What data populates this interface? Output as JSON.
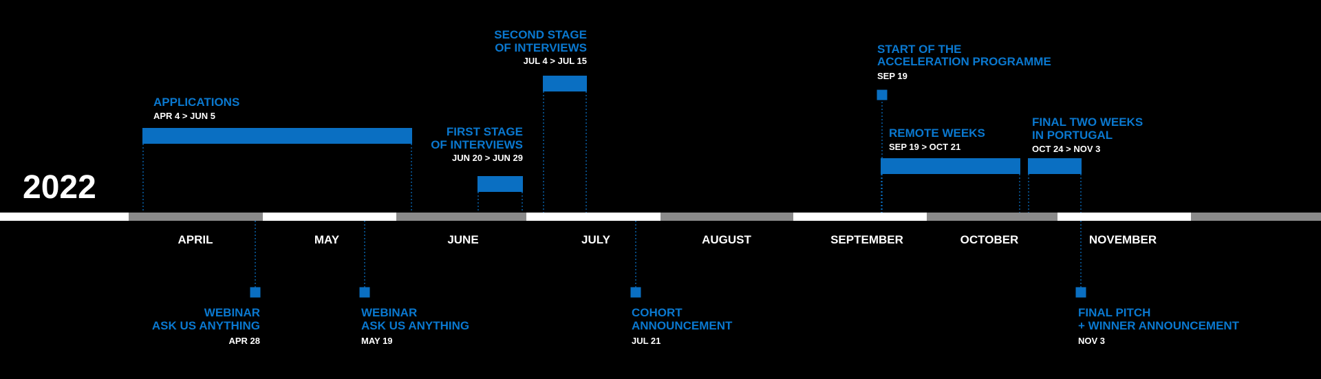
{
  "year": "2022",
  "months": [
    "APRIL",
    "MAY",
    "JUNE",
    "JULY",
    "AUGUST",
    "SEPTEMBER",
    "OCTOBER",
    "NOVEMBER"
  ],
  "events": [
    {
      "title": [
        "APPLICATIONS"
      ],
      "date": "APR 4 > JUN 5"
    },
    {
      "title": [
        "FIRST STAGE",
        "OF INTERVIEWS"
      ],
      "date": "JUN 20 > JUN 29"
    },
    {
      "title": [
        "SECOND STAGE",
        "OF INTERVIEWS"
      ],
      "date": "JUL 4 > JUL 15"
    },
    {
      "title": [
        "START OF THE",
        "ACCELERATION PROGRAMME"
      ],
      "date": "SEP 19"
    },
    {
      "title": [
        "REMOTE WEEKS"
      ],
      "date": "SEP 19 > OCT 21"
    },
    {
      "title": [
        "FINAL TWO WEEKS",
        "IN PORTUGAL"
      ],
      "date": "OCT 24 > NOV 3"
    },
    {
      "title": [
        "WEBINAR",
        "ASK US ANYTHING"
      ],
      "date": "APR 28"
    },
    {
      "title": [
        "WEBINAR",
        "ASK US ANYTHING"
      ],
      "date": "MAY 19"
    },
    {
      "title": [
        "COHORT",
        "ANNOUNCEMENT"
      ],
      "date": "JUL 21"
    },
    {
      "title": [
        "FINAL PITCH",
        "+ WINNER ANNOUNCEMENT"
      ],
      "date": "NOV 3"
    }
  ]
}
